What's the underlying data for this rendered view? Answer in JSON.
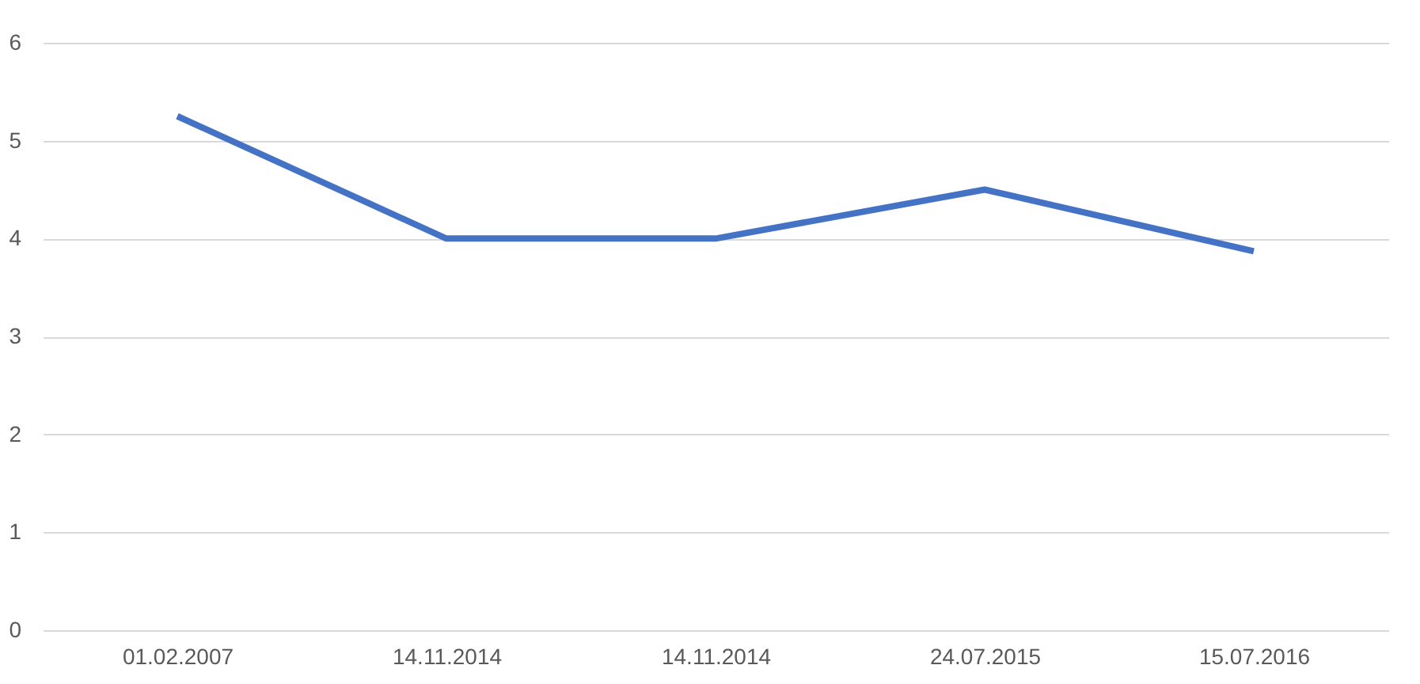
{
  "chart_data": {
    "type": "line",
    "categories": [
      "01.02.2007",
      "14.11.2014",
      "14.11.2014",
      "24.07.2015",
      "15.07.2016"
    ],
    "series": [
      {
        "color": "#4472c4",
        "values": [
          5.25,
          4,
          4,
          4.5,
          3.87
        ]
      }
    ],
    "ylim": [
      0,
      6
    ],
    "yticks": [
      0,
      1,
      2,
      3,
      4,
      5,
      6
    ],
    "grid": "y",
    "marker": "none",
    "line_style": "solid"
  }
}
